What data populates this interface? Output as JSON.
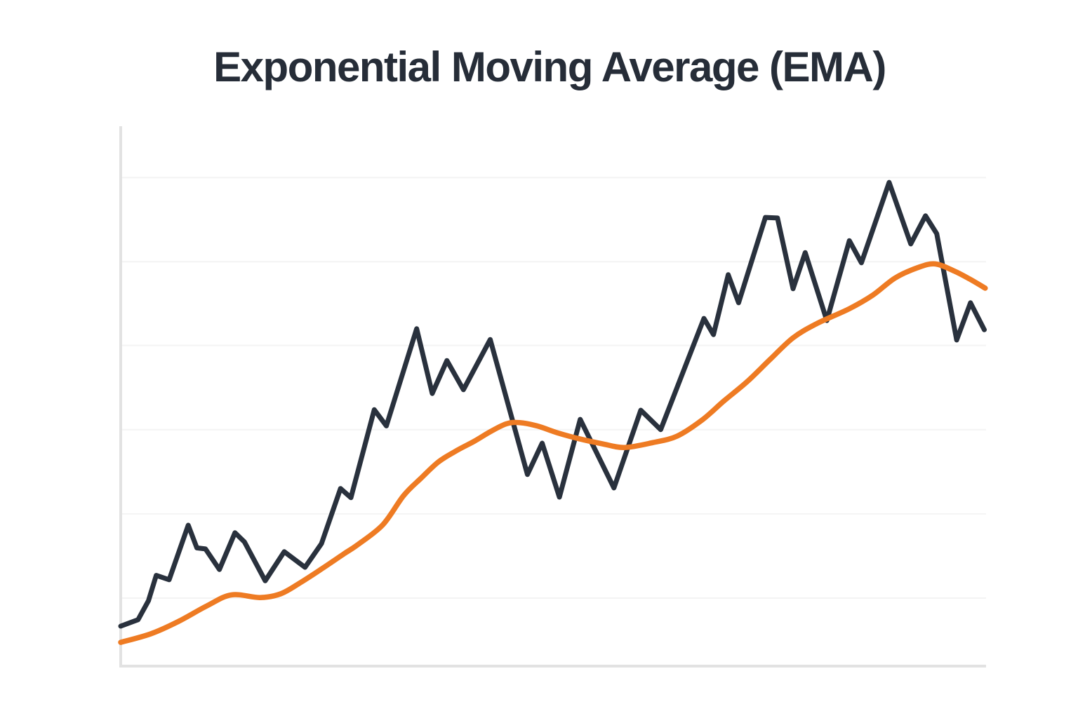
{
  "title": "Exponential Moving Average (EMA)",
  "colors": {
    "background": "#ffffff",
    "title_text": "#262d38",
    "price_line": "#29313d",
    "ema_line": "#ee7b23",
    "axis": "#e2e2e2",
    "gridline": "#f4f4f4"
  },
  "chart_data": {
    "type": "line",
    "title": "Exponential Moving Average (EMA)",
    "xlabel": "",
    "ylabel": "",
    "x_axis": {
      "min": 0,
      "max": 100,
      "tick_labels_visible": false
    },
    "y_axis": {
      "min": 0,
      "max": 100,
      "tick_labels_visible": false
    },
    "grid": "horizontal-only",
    "gridlines_y_values": [
      12.6,
      28.2,
      43.8,
      59.4,
      74.9,
      90.5
    ],
    "legend_position": "none",
    "series": [
      {
        "name": "price",
        "color": "#29313d",
        "smooth": false,
        "points": [
          [
            0.0,
            7.4
          ],
          [
            2.0,
            8.6
          ],
          [
            3.2,
            12.1
          ],
          [
            4.1,
            16.8
          ],
          [
            5.6,
            16.0
          ],
          [
            7.8,
            26.1
          ],
          [
            8.8,
            21.9
          ],
          [
            9.8,
            21.7
          ],
          [
            11.4,
            17.9
          ],
          [
            13.2,
            24.7
          ],
          [
            14.3,
            23.0
          ],
          [
            16.7,
            15.8
          ],
          [
            18.9,
            21.2
          ],
          [
            21.3,
            18.3
          ],
          [
            23.2,
            22.7
          ],
          [
            25.4,
            32.9
          ],
          [
            26.6,
            31.2
          ],
          [
            29.3,
            47.5
          ],
          [
            30.7,
            44.5
          ],
          [
            34.2,
            62.5
          ],
          [
            36.0,
            50.5
          ],
          [
            37.7,
            56.6
          ],
          [
            39.6,
            51.2
          ],
          [
            42.7,
            60.5
          ],
          [
            47.0,
            35.5
          ],
          [
            48.7,
            41.3
          ],
          [
            50.7,
            31.3
          ],
          [
            53.1,
            45.7
          ],
          [
            57.0,
            33.0
          ],
          [
            60.1,
            47.4
          ],
          [
            62.4,
            43.8
          ],
          [
            67.4,
            64.4
          ],
          [
            68.5,
            61.4
          ],
          [
            70.2,
            72.5
          ],
          [
            71.4,
            67.3
          ],
          [
            74.5,
            83.1
          ],
          [
            75.9,
            83.0
          ],
          [
            77.7,
            69.9
          ],
          [
            79.1,
            76.6
          ],
          [
            81.6,
            64.0
          ],
          [
            84.2,
            78.8
          ],
          [
            85.6,
            74.7
          ],
          [
            88.8,
            89.6
          ],
          [
            91.3,
            78.2
          ],
          [
            93.0,
            83.4
          ],
          [
            94.3,
            80.1
          ],
          [
            96.6,
            60.4
          ],
          [
            98.2,
            67.3
          ],
          [
            99.8,
            62.3
          ]
        ]
      },
      {
        "name": "ema",
        "color": "#ee7b23",
        "smooth": true,
        "points": [
          [
            0.0,
            4.4
          ],
          [
            3.5,
            6.0
          ],
          [
            6.7,
            8.3
          ],
          [
            10.0,
            11.2
          ],
          [
            12.8,
            13.2
          ],
          [
            16.1,
            12.7
          ],
          [
            18.5,
            13.4
          ],
          [
            20.9,
            15.6
          ],
          [
            23.4,
            18.2
          ],
          [
            25.8,
            20.8
          ],
          [
            27.4,
            22.5
          ],
          [
            30.3,
            26.2
          ],
          [
            32.7,
            31.6
          ],
          [
            34.7,
            34.8
          ],
          [
            36.7,
            37.8
          ],
          [
            38.8,
            39.9
          ],
          [
            40.8,
            41.6
          ],
          [
            42.8,
            43.5
          ],
          [
            44.6,
            44.9
          ],
          [
            46.1,
            45.1
          ],
          [
            48.1,
            44.5
          ],
          [
            50.5,
            43.2
          ],
          [
            53.0,
            42.1
          ],
          [
            55.6,
            41.2
          ],
          [
            58.2,
            40.5
          ],
          [
            61.5,
            41.4
          ],
          [
            64.3,
            42.6
          ],
          [
            67.2,
            45.6
          ],
          [
            69.7,
            49.1
          ],
          [
            72.4,
            52.7
          ],
          [
            75.1,
            56.9
          ],
          [
            77.7,
            60.8
          ],
          [
            80.4,
            63.4
          ],
          [
            84.2,
            66.2
          ],
          [
            86.9,
            68.7
          ],
          [
            89.5,
            71.9
          ],
          [
            92.1,
            73.8
          ],
          [
            94.1,
            74.5
          ],
          [
            96.3,
            73.2
          ],
          [
            98.1,
            71.7
          ],
          [
            99.9,
            70.0
          ]
        ]
      }
    ]
  }
}
